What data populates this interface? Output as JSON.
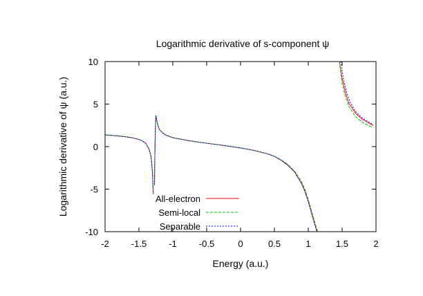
{
  "chart_data": {
    "type": "line",
    "title": "Logarithmic derivative of s-component ψ",
    "xlabel": "Energy (a.u.)",
    "ylabel": "Logarithmic derivative of ψ (a.u.)",
    "xlim": [
      -2,
      2
    ],
    "ylim": [
      -10,
      10
    ],
    "xticks": [
      -2,
      -1.5,
      -1,
      -0.5,
      0,
      0.5,
      1,
      1.5,
      2
    ],
    "yticks": [
      -10,
      -5,
      0,
      5,
      10
    ],
    "xtick_labels": [
      "-2",
      "-1.5",
      "-1",
      "-0.5",
      "0",
      "0.5",
      "1",
      "1.5",
      "2"
    ],
    "ytick_labels": [
      "-10",
      "-5",
      "0",
      "5",
      "10"
    ],
    "grid": false,
    "legend_position": "bottom-left",
    "series": [
      {
        "name": "All-electron",
        "color": "#ff0000",
        "dash": "solid",
        "branches": [
          [
            [
              -2,
              1.38
            ],
            [
              -1.9,
              1.32
            ],
            [
              -1.8,
              1.25
            ],
            [
              -1.7,
              1.16
            ],
            [
              -1.6,
              1.04
            ],
            [
              -1.5,
              0.85
            ],
            [
              -1.45,
              0.68
            ],
            [
              -1.4,
              0.4
            ],
            [
              -1.35,
              -0.3
            ],
            [
              -1.32,
              -1.2
            ],
            [
              -1.3,
              -3.0
            ],
            [
              -1.29,
              -5.2
            ],
            [
              -1.285,
              -5.6
            ]
          ],
          [
            [
              -1.27,
              -4.5
            ],
            [
              -1.265,
              -1.0
            ],
            [
              -1.26,
              1.0
            ],
            [
              -1.255,
              2.8
            ],
            [
              -1.25,
              3.65
            ],
            [
              -1.24,
              3.2
            ],
            [
              -1.22,
              2.5
            ],
            [
              -1.2,
              2.05
            ],
            [
              -1.15,
              1.6
            ],
            [
              -1.1,
              1.35
            ],
            [
              -1.0,
              1.05
            ],
            [
              -0.8,
              0.75
            ],
            [
              -0.6,
              0.5
            ],
            [
              -0.4,
              0.3
            ],
            [
              -0.2,
              0.08
            ],
            [
              0,
              -0.15
            ],
            [
              0.2,
              -0.45
            ],
            [
              0.4,
              -0.85
            ],
            [
              0.5,
              -1.15
            ],
            [
              0.6,
              -1.6
            ],
            [
              0.7,
              -2.2
            ],
            [
              0.8,
              -3.0
            ],
            [
              0.9,
              -4.3
            ],
            [
              0.95,
              -5.2
            ],
            [
              1.0,
              -6.4
            ],
            [
              1.05,
              -7.8
            ],
            [
              1.1,
              -9.2
            ],
            [
              1.13,
              -10
            ]
          ],
          [
            [
              1.46,
              10
            ],
            [
              1.5,
              8.0
            ],
            [
              1.55,
              6.3
            ],
            [
              1.6,
              5.1
            ],
            [
              1.7,
              3.9
            ],
            [
              1.8,
              3.2
            ],
            [
              1.9,
              2.75
            ],
            [
              1.96,
              2.5
            ]
          ]
        ]
      },
      {
        "name": "Semi-local",
        "color": "#00c000",
        "dash": "dash",
        "branches": [
          [
            [
              -2,
              1.38
            ],
            [
              -1.9,
              1.32
            ],
            [
              -1.8,
              1.25
            ],
            [
              -1.7,
              1.16
            ],
            [
              -1.6,
              1.04
            ],
            [
              -1.5,
              0.85
            ],
            [
              -1.45,
              0.68
            ],
            [
              -1.4,
              0.4
            ],
            [
              -1.35,
              -0.3
            ],
            [
              -1.32,
              -1.2
            ],
            [
              -1.3,
              -3.0
            ],
            [
              -1.29,
              -5.2
            ],
            [
              -1.285,
              -5.6
            ]
          ],
          [
            [
              -1.27,
              -4.5
            ],
            [
              -1.265,
              -1.0
            ],
            [
              -1.26,
              1.0
            ],
            [
              -1.255,
              2.8
            ],
            [
              -1.25,
              3.65
            ],
            [
              -1.24,
              3.2
            ],
            [
              -1.22,
              2.5
            ],
            [
              -1.2,
              2.05
            ],
            [
              -1.15,
              1.6
            ],
            [
              -1.1,
              1.35
            ],
            [
              -1.0,
              1.05
            ],
            [
              -0.8,
              0.75
            ],
            [
              -0.6,
              0.5
            ],
            [
              -0.4,
              0.3
            ],
            [
              -0.2,
              0.08
            ],
            [
              0,
              -0.15
            ],
            [
              0.2,
              -0.45
            ],
            [
              0.4,
              -0.85
            ],
            [
              0.5,
              -1.15
            ],
            [
              0.6,
              -1.55
            ],
            [
              0.7,
              -2.1
            ],
            [
              0.8,
              -2.9
            ],
            [
              0.9,
              -4.1
            ],
            [
              0.95,
              -5.0
            ],
            [
              1.0,
              -6.2
            ],
            [
              1.05,
              -7.6
            ],
            [
              1.1,
              -9.0
            ],
            [
              1.14,
              -10
            ]
          ],
          [
            [
              1.46,
              10
            ],
            [
              1.5,
              7.4
            ],
            [
              1.55,
              5.8
            ],
            [
              1.6,
              4.7
            ],
            [
              1.7,
              3.5
            ],
            [
              1.8,
              2.85
            ],
            [
              1.9,
              2.45
            ],
            [
              1.96,
              2.2
            ]
          ]
        ]
      },
      {
        "name": "Separable",
        "color": "#0000ff",
        "dash": "dot",
        "branches": [
          [
            [
              -2,
              1.38
            ],
            [
              -1.9,
              1.32
            ],
            [
              -1.8,
              1.25
            ],
            [
              -1.7,
              1.16
            ],
            [
              -1.6,
              1.04
            ],
            [
              -1.5,
              0.85
            ],
            [
              -1.45,
              0.68
            ],
            [
              -1.4,
              0.4
            ],
            [
              -1.35,
              -0.3
            ],
            [
              -1.32,
              -1.2
            ],
            [
              -1.3,
              -3.0
            ],
            [
              -1.29,
              -5.2
            ],
            [
              -1.285,
              -5.6
            ]
          ],
          [
            [
              -1.27,
              -4.5
            ],
            [
              -1.265,
              -1.0
            ],
            [
              -1.26,
              1.0
            ],
            [
              -1.255,
              2.8
            ],
            [
              -1.25,
              3.65
            ],
            [
              -1.24,
              3.2
            ],
            [
              -1.22,
              2.5
            ],
            [
              -1.2,
              2.05
            ],
            [
              -1.15,
              1.6
            ],
            [
              -1.1,
              1.35
            ],
            [
              -1.0,
              1.05
            ],
            [
              -0.8,
              0.75
            ],
            [
              -0.6,
              0.5
            ],
            [
              -0.4,
              0.3
            ],
            [
              -0.2,
              0.08
            ],
            [
              0,
              -0.15
            ],
            [
              0.2,
              -0.45
            ],
            [
              0.4,
              -0.85
            ],
            [
              0.5,
              -1.15
            ],
            [
              0.6,
              -1.6
            ],
            [
              0.7,
              -2.2
            ],
            [
              0.8,
              -3.0
            ],
            [
              0.9,
              -4.35
            ],
            [
              0.95,
              -5.3
            ],
            [
              1.0,
              -6.5
            ],
            [
              1.05,
              -7.9
            ],
            [
              1.1,
              -9.3
            ],
            [
              1.125,
              -10
            ]
          ],
          [
            [
              1.48,
              10
            ],
            [
              1.52,
              7.9
            ],
            [
              1.57,
              6.3
            ],
            [
              1.62,
              5.2
            ],
            [
              1.7,
              4.1
            ],
            [
              1.8,
              3.35
            ],
            [
              1.9,
              2.85
            ],
            [
              1.96,
              2.6
            ]
          ]
        ]
      }
    ]
  }
}
